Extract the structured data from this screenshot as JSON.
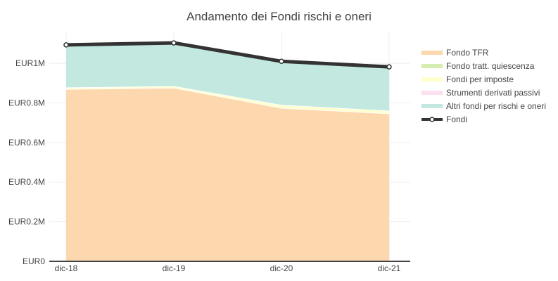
{
  "chart_data": {
    "type": "area",
    "title": "Andamento dei Fondi rischi e oneri",
    "xlabel": "",
    "ylabel": "",
    "categories": [
      "dic-18",
      "dic-19",
      "dic-20",
      "dic-21"
    ],
    "ylim": [
      0,
      1160000
    ],
    "yticks": [
      {
        "value": 0,
        "label": "EUR0"
      },
      {
        "value": 200000,
        "label": "EUR0.2M"
      },
      {
        "value": 400000,
        "label": "EUR0.4M"
      },
      {
        "value": 600000,
        "label": "EUR0.6M"
      },
      {
        "value": 800000,
        "label": "EUR0.8M"
      },
      {
        "value": 1000000,
        "label": "EUR1M"
      }
    ],
    "grid": true,
    "legend_position": "right",
    "series": [
      {
        "name": "Fondo TFR",
        "kind": "stacked-area",
        "color": "#fdd7ad",
        "values": [
          870000,
          877000,
          775000,
          747000
        ]
      },
      {
        "name": "Fondo tratt. quiescenza",
        "kind": "stacked-area",
        "color": "#d6ecb0",
        "values": [
          0,
          0,
          0,
          0
        ]
      },
      {
        "name": "Fondi per imposte",
        "kind": "stacked-area",
        "color": "#ffffcc",
        "values": [
          8000,
          8000,
          15000,
          14000
        ]
      },
      {
        "name": "Strumenti derivati passivi",
        "kind": "stacked-area",
        "color": "#fde0ef",
        "values": [
          0,
          0,
          0,
          0
        ]
      },
      {
        "name": "Altri fondi per rischi e oneri",
        "kind": "stacked-area",
        "color": "#c3e8e0",
        "values": [
          215000,
          218000,
          220000,
          221000
        ]
      },
      {
        "name": "Fondi",
        "kind": "line",
        "color": "#333333",
        "values": [
          1093000,
          1103000,
          1010000,
          982000
        ]
      }
    ]
  }
}
